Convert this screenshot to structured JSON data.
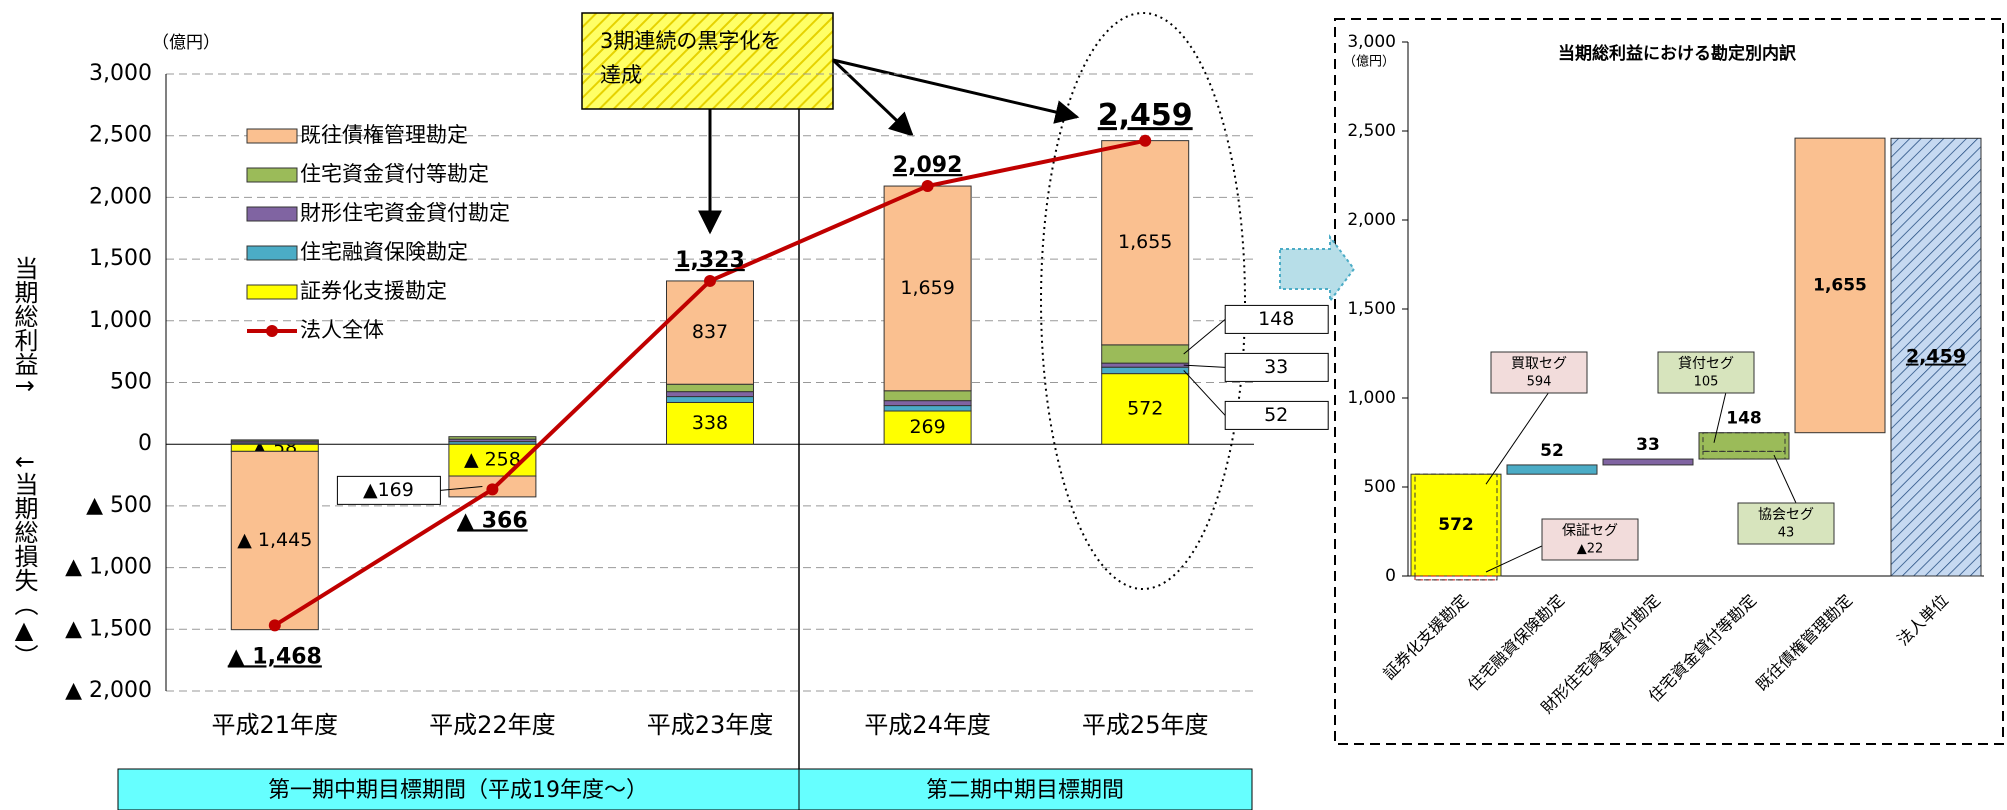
{
  "chart_data": [
    {
      "type": "bar",
      "stacked": true,
      "unit": "（億円）",
      "ylabel_top": "当期総利益↑",
      "ylabel_bottom": "↓当期総損失（▲）",
      "categories": [
        "平成21年度",
        "平成22年度",
        "平成23年度",
        "平成24年度",
        "平成25年度"
      ],
      "series": [
        {
          "name": "既往債権管理勘定",
          "color": "#fac090",
          "values": [
            -1445,
            -169,
            837,
            1659,
            1655
          ],
          "value_labels": [
            "▲ 1,445",
            "▲169",
            "837",
            "1,659",
            "1,655"
          ]
        },
        {
          "name": "住宅資金貸付等勘定",
          "color": "#9bbb59",
          "values": [
            10,
            20,
            60,
            80,
            148
          ],
          "value_labels": [
            null,
            null,
            null,
            null,
            "148"
          ]
        },
        {
          "name": "財形住宅資金貸付勘定",
          "color": "#8064a2",
          "values": [
            15,
            20,
            40,
            40,
            33
          ],
          "value_labels": [
            null,
            null,
            null,
            null,
            "33"
          ]
        },
        {
          "name": "住宅融資保険勘定",
          "color": "#4bacc6",
          "values": [
            10,
            21,
            48,
            44,
            52
          ],
          "value_labels": [
            null,
            null,
            null,
            null,
            "52"
          ]
        },
        {
          "name": "証券化支援勘定",
          "color": "#ffff00",
          "values": [
            -58,
            -258,
            338,
            269,
            572
          ],
          "value_labels": [
            "▲ 58",
            "▲ 258",
            "338",
            "269",
            "572"
          ]
        },
        {
          "name": "法人全体",
          "type": "line",
          "color": "#c00000",
          "values": [
            -1468,
            -366,
            1323,
            2092,
            2459
          ],
          "value_labels": [
            "▲ 1,468",
            "▲ 366",
            "1,323",
            "2,092",
            "2,459"
          ]
        }
      ],
      "ylim": [
        -2000,
        3000
      ],
      "yticks": [
        {
          "value": -2000,
          "label": "▲ 2,000"
        },
        {
          "value": -1500,
          "label": "▲ 1,500"
        },
        {
          "value": -1000,
          "label": "▲ 1,000"
        },
        {
          "value": -500,
          "label": "▲ 500"
        },
        0,
        500,
        {
          "value": 1000,
          "label": "1,000"
        },
        {
          "value": 1500,
          "label": "1,500"
        },
        {
          "value": 2000,
          "label": "2,000"
        },
        {
          "value": 2500,
          "label": "2,500"
        },
        {
          "value": 3000,
          "label": "3,000"
        }
      ],
      "grid": true,
      "annotation": [
        "3期連続の黒字化を",
        "達成"
      ],
      "periods": [
        "第一期中期目標期間（平成19年度～）",
        "第二期中期目標期間"
      ]
    },
    {
      "type": "waterfall",
      "title": "当期総利益における勘定別内訳",
      "unit": "（億円）",
      "categories": [
        "証券化支援勘定",
        "住宅融資保険勘定",
        "財形住宅資金貸付勘定",
        "住宅資金貸付等勘定",
        "既往債権管理勘定",
        "法人単位"
      ],
      "values": [
        572,
        52,
        33,
        148,
        1655,
        2459
      ],
      "value_labels": [
        "572",
        "52",
        "33",
        "148",
        "1,655",
        "2,459"
      ],
      "colors": [
        "#ffff00",
        "#4bacc6",
        "#8064a2",
        "#9bbb59",
        "#fac090",
        "#c6d9f1"
      ],
      "breakdown": [
        [
          {
            "name": "買取セグ",
            "value": 594
          },
          {
            "name": "保証セグ",
            "value": -22,
            "value_label": "▲22"
          }
        ],
        [],
        [],
        [
          {
            "name": "貸付セグ",
            "value": 105
          },
          {
            "name": "協会セグ",
            "value": 43
          }
        ],
        [],
        []
      ],
      "ylim": [
        0,
        3000
      ],
      "yticks": [
        0,
        500,
        {
          "value": 1000,
          "label": "1,000"
        },
        {
          "value": 1500,
          "label": "1,500"
        },
        {
          "value": 2000,
          "label": "2,000"
        },
        {
          "value": 2500,
          "label": "2,500"
        },
        {
          "value": 3000,
          "label": "3,000"
        }
      ]
    }
  ]
}
